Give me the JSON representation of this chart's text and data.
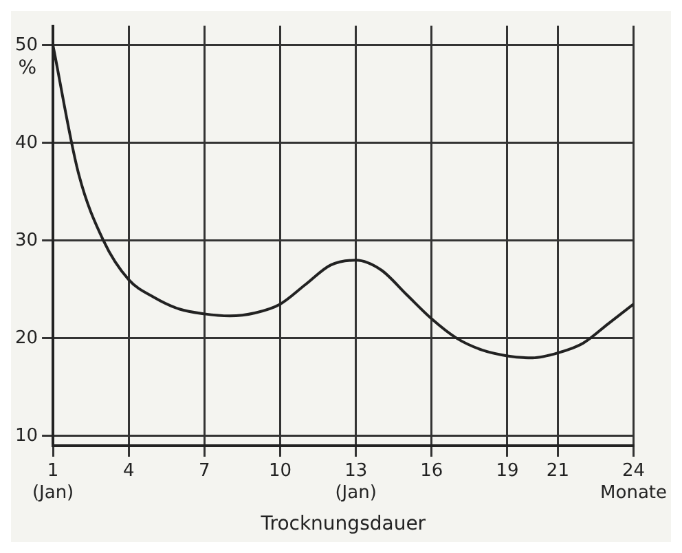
{
  "chart_data": {
    "type": "line",
    "xlabel": "Trocknungsdauer",
    "ylabel": "%",
    "x": [
      1,
      2,
      3,
      4,
      5,
      6,
      7,
      8,
      9,
      10,
      11,
      12,
      13,
      14,
      15,
      16,
      17,
      18,
      19,
      20,
      21,
      22,
      23,
      24
    ],
    "series": [
      {
        "color": "#222222",
        "values": [
          50,
          37,
          30,
          26,
          24.2,
          23,
          22.5,
          22.3,
          22.6,
          23.5,
          25.5,
          27.5,
          28,
          27,
          24.5,
          22,
          20,
          18.8,
          18.2,
          18,
          18.5,
          19.5,
          21.5,
          23.5
        ]
      }
    ],
    "xlim": [
      1,
      24
    ],
    "xticks": [
      {
        "value": 1,
        "label": "1\n(Jan)"
      },
      4,
      7,
      10,
      {
        "value": 13,
        "label": "13\n(Jan)"
      },
      16,
      19,
      21,
      {
        "value": 24,
        "label": "24\nMonate"
      }
    ],
    "ylim": [
      9,
      52
    ],
    "yticks": [
      10,
      20,
      30,
      40,
      50
    ],
    "grid": true,
    "marker": "none",
    "line_style": "solid"
  }
}
